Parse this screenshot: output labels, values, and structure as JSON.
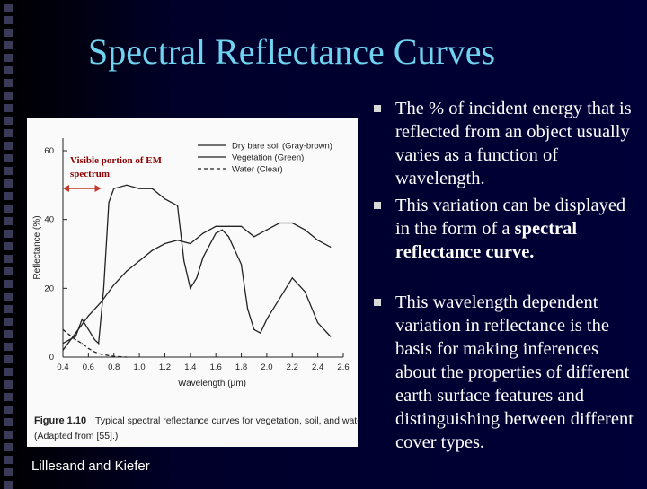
{
  "slide": {
    "title": "Spectral Reflectance Curves",
    "credit": "Lillesand and Kiefer"
  },
  "bullets": [
    {
      "text": "The % of incident energy that is reflected from an object usually varies as a function of wavelength."
    },
    {
      "text_before": "This variation can be displayed in the form of a ",
      "text_bold": "spectral reflectance curve."
    },
    {
      "text": "This wavelength dependent variation in reflectance is the basis for making inferences about the properties of different earth surface features and distinguishing between different cover types."
    }
  ],
  "figure": {
    "annotation": "Visible portion of EM spectrum",
    "caption_label": "Figure 1.10",
    "caption_text": "Typical spectral reflectance curves for vegetation, soil, and water.",
    "caption_source": "(Adapted from [55].)"
  },
  "colors": {
    "title": "#6fd4f0",
    "annotation": "#8b0000",
    "arrow": "#c0392b",
    "background": "#000038"
  },
  "chart_data": {
    "type": "line",
    "xlabel": "Wavelength (µm)",
    "ylabel": "Reflectance (%)",
    "xlim": [
      0.4,
      2.6
    ],
    "ylim": [
      0,
      60
    ],
    "xticks": [
      "0.4",
      "0.6",
      "0.8",
      "1.0",
      "1.2",
      "1.4",
      "1.6",
      "1.8",
      "2.0",
      "2.2",
      "2.4",
      "2.6"
    ],
    "yticks": [
      "0",
      "20",
      "40",
      "60"
    ],
    "grid": false,
    "legend_position": "top-right",
    "series": [
      {
        "name": "Dry bare soil (Gray-brown)",
        "style": "solid",
        "points": [
          [
            0.4,
            2
          ],
          [
            0.5,
            7
          ],
          [
            0.6,
            12
          ],
          [
            0.7,
            16
          ],
          [
            0.8,
            21
          ],
          [
            0.9,
            25
          ],
          [
            1.0,
            28
          ],
          [
            1.1,
            31
          ],
          [
            1.2,
            33
          ],
          [
            1.3,
            34
          ],
          [
            1.4,
            33
          ],
          [
            1.5,
            36
          ],
          [
            1.6,
            38
          ],
          [
            1.7,
            38
          ],
          [
            1.8,
            38
          ],
          [
            1.9,
            35
          ],
          [
            2.0,
            37
          ],
          [
            2.1,
            39
          ],
          [
            2.2,
            39
          ],
          [
            2.3,
            37
          ],
          [
            2.4,
            34
          ],
          [
            2.5,
            32
          ]
        ]
      },
      {
        "name": "Vegetation (Green)",
        "style": "solid",
        "points": [
          [
            0.4,
            4
          ],
          [
            0.45,
            5
          ],
          [
            0.5,
            6
          ],
          [
            0.55,
            11
          ],
          [
            0.6,
            8
          ],
          [
            0.65,
            5
          ],
          [
            0.68,
            4
          ],
          [
            0.72,
            20
          ],
          [
            0.76,
            45
          ],
          [
            0.8,
            49
          ],
          [
            0.9,
            50
          ],
          [
            1.0,
            49
          ],
          [
            1.1,
            49
          ],
          [
            1.2,
            46
          ],
          [
            1.3,
            44
          ],
          [
            1.35,
            28
          ],
          [
            1.4,
            20
          ],
          [
            1.45,
            23
          ],
          [
            1.5,
            29
          ],
          [
            1.6,
            36
          ],
          [
            1.65,
            37
          ],
          [
            1.7,
            35
          ],
          [
            1.8,
            27
          ],
          [
            1.85,
            14
          ],
          [
            1.9,
            8
          ],
          [
            1.95,
            7
          ],
          [
            2.0,
            11
          ],
          [
            2.1,
            17
          ],
          [
            2.2,
            23
          ],
          [
            2.3,
            19
          ],
          [
            2.4,
            10
          ],
          [
            2.5,
            6
          ]
        ]
      },
      {
        "name": "Water (Clear)",
        "style": "dashed",
        "points": [
          [
            0.4,
            8
          ],
          [
            0.45,
            6.5
          ],
          [
            0.5,
            5
          ],
          [
            0.55,
            4
          ],
          [
            0.6,
            2.5
          ],
          [
            0.65,
            1.5
          ],
          [
            0.7,
            0.8
          ],
          [
            0.8,
            0.2
          ],
          [
            0.9,
            0
          ]
        ]
      }
    ]
  }
}
